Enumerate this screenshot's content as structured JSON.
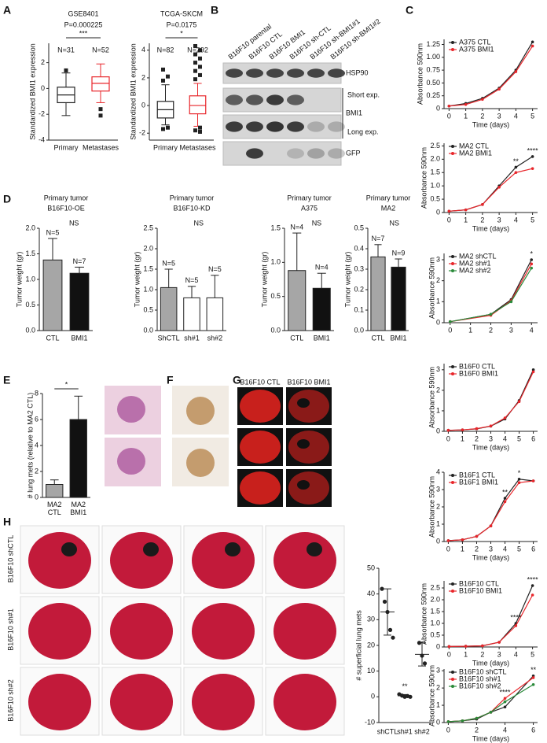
{
  "panel_labels": [
    "A",
    "B",
    "C",
    "D",
    "E",
    "F",
    "G",
    "H"
  ],
  "blot": {
    "lanes": [
      "B16F10 parental",
      "B16F10 CTL",
      "B16F10 BMI1",
      "B16F10 sh-CTL",
      "B16F10 sh-BMI1#1",
      "B16F10 sh-BMI1#2"
    ],
    "proteins": [
      "HSP90",
      "BMI1",
      "GFP"
    ],
    "exposures": [
      "Short exp.",
      "Long exp."
    ]
  },
  "images": {
    "g_columns": [
      "B16F10 CTL",
      "B16F10 BMI1"
    ],
    "h_rows": [
      "B16F10 shCTL",
      "B16F10 sh#1",
      "B16F10 sh#2"
    ]
  },
  "chart_data": [
    {
      "type": "box",
      "title": "GSE8401",
      "p_value": "P=0.000225",
      "significance": "***",
      "categories": [
        "Primary",
        "Metastases"
      ],
      "n_labels": [
        "N=31",
        "N=52"
      ],
      "ylabel": "Standardized BMI1 expression",
      "ylim": [
        -4,
        3.5
      ],
      "yticks": [
        -4,
        -2,
        0,
        2
      ],
      "boxes": [
        {
          "color": "#222222",
          "min": -2.1,
          "q1": -1.1,
          "median": -0.5,
          "q3": 0.1,
          "max": 1.2,
          "outliers": [
            1.4
          ]
        },
        {
          "color": "#e8262b",
          "min": -1.1,
          "q1": -0.2,
          "median": 0.4,
          "q3": 0.9,
          "max": 1.9,
          "outliers": [
            -1.6,
            -2.1
          ]
        }
      ]
    },
    {
      "type": "box",
      "title": "TCGA-SKCM",
      "p_value": "P=0.0175",
      "significance": "*",
      "categories": [
        "Primary",
        "Metastases"
      ],
      "n_labels": [
        "N=82",
        "N=292"
      ],
      "ylabel": "Standardized BMI1 expression",
      "ylim": [
        -2.5,
        4.5
      ],
      "yticks": [
        -2,
        0,
        2,
        4
      ],
      "boxes": [
        {
          "color": "#222222",
          "min": -1.4,
          "q1": -0.9,
          "median": -0.3,
          "q3": 0.3,
          "max": 1.5,
          "outliers": [
            1.8,
            2.1,
            2.6,
            -1.6,
            -1.7
          ]
        },
        {
          "color": "#e8262b",
          "min": -1.5,
          "q1": -0.6,
          "median": 0,
          "q3": 0.7,
          "max": 1.6,
          "outliers": [
            1.9,
            2.2,
            2.5,
            2.8,
            3.1,
            3.4,
            3.7,
            4.0,
            4.3,
            -1.6,
            -1.8,
            -1.9
          ]
        }
      ]
    },
    {
      "type": "line",
      "ylabel": "Absorbance 590nm",
      "xlabel": "Time (days)",
      "x": [
        0,
        1,
        2,
        3,
        4,
        5
      ],
      "xlim": [
        -0.3,
        5.3
      ],
      "xticks": [
        0,
        1,
        2,
        3,
        4,
        5
      ],
      "ylim": [
        0,
        1.35
      ],
      "yticks": [
        0,
        0.25,
        {
          "value": 0.5,
          "label": "0.50"
        },
        0.75,
        {
          "value": 1,
          "label": "1.00"
        },
        1.25
      ],
      "series": [
        {
          "name": "A375 CTL",
          "color": "#222222",
          "values": [
            0.05,
            0.1,
            0.2,
            0.4,
            0.75,
            1.3
          ]
        },
        {
          "name": "A375 BMI1",
          "color": "#e8262b",
          "values": [
            0.05,
            0.08,
            0.18,
            0.38,
            0.72,
            1.22
          ]
        }
      ]
    },
    {
      "type": "line",
      "ylabel": "Absorbance 590nm",
      "xlabel": "Time (days)",
      "x": [
        0,
        1,
        2,
        3,
        4,
        5
      ],
      "xlim": [
        -0.3,
        5.3
      ],
      "xticks": [
        0,
        1,
        2,
        3,
        4,
        5
      ],
      "ylim": [
        0,
        2.6
      ],
      "yticks": [
        0,
        0.5,
        {
          "value": 1,
          "label": "1.0"
        },
        1.5,
        {
          "value": 2,
          "label": "2.0"
        },
        2.5
      ],
      "series": [
        {
          "name": "MA2 CTL",
          "color": "#222222",
          "values": [
            0.05,
            0.1,
            0.3,
            1.0,
            1.7,
            2.1
          ]
        },
        {
          "name": "MA2 BMI1",
          "color": "#e8262b",
          "values": [
            0.05,
            0.1,
            0.3,
            0.95,
            1.5,
            1.65
          ]
        }
      ],
      "annotations": [
        {
          "text": "**",
          "x": 4
        },
        {
          "text": "****",
          "x": 5
        }
      ]
    },
    {
      "type": "line",
      "ylabel": "Absorbance 590nm",
      "x": [
        0,
        2,
        3,
        4
      ],
      "xlim": [
        -0.3,
        4.3
      ],
      "xticks": [
        0,
        1,
        2,
        3,
        4
      ],
      "ylim": [
        0,
        3.3
      ],
      "yticks": [
        0,
        1,
        2,
        3
      ],
      "series": [
        {
          "name": "MA2 shCTL",
          "color": "#222222",
          "values": [
            0.05,
            0.4,
            1.1,
            3.0
          ]
        },
        {
          "name": "MA2 sh#1",
          "color": "#e8262b",
          "values": [
            0.05,
            0.35,
            1.05,
            2.8
          ]
        },
        {
          "name": "MA2 sh#2",
          "color": "#2a8a3a",
          "values": [
            0.05,
            0.4,
            1.0,
            2.6
          ]
        }
      ],
      "annotations": [
        {
          "text": "*",
          "x": 4
        }
      ]
    },
    {
      "type": "line",
      "ylabel": "Absorbance 590nm",
      "xlabel": "Time (days)",
      "x": [
        0,
        1,
        2,
        3,
        4,
        5,
        6
      ],
      "xlim": [
        -0.3,
        6.3
      ],
      "xticks": [
        0,
        1,
        2,
        3,
        4,
        5,
        6
      ],
      "ylim": [
        0,
        3.3
      ],
      "yticks": [
        0,
        1,
        2,
        3
      ],
      "series": [
        {
          "name": "B16F0 CTL",
          "color": "#222222",
          "values": [
            0.05,
            0.07,
            0.12,
            0.25,
            0.6,
            1.5,
            3.0
          ]
        },
        {
          "name": "B16F0 BMI1",
          "color": "#e8262b",
          "values": [
            0.05,
            0.07,
            0.13,
            0.26,
            0.65,
            1.45,
            2.9
          ]
        }
      ]
    },
    {
      "type": "line",
      "ylabel": "Absorbance 590nm",
      "xlabel": "Time (days)",
      "x": [
        0,
        1,
        2,
        3,
        4,
        5,
        6
      ],
      "xlim": [
        -0.3,
        6.3
      ],
      "xticks": [
        0,
        1,
        2,
        3,
        4,
        5,
        6
      ],
      "ylim": [
        0,
        4
      ],
      "yticks": [
        0,
        1,
        2,
        3,
        4
      ],
      "series": [
        {
          "name": "B16F1 CTL",
          "color": "#222222",
          "values": [
            0.05,
            0.1,
            0.3,
            0.9,
            2.5,
            3.6,
            3.5
          ]
        },
        {
          "name": "B16F1 BMI1",
          "color": "#e8262b",
          "values": [
            0.05,
            0.1,
            0.3,
            0.9,
            2.3,
            3.4,
            3.5
          ]
        }
      ],
      "annotations": [
        {
          "text": "**",
          "x": 4
        },
        {
          "text": "*",
          "x": 5
        }
      ]
    },
    {
      "type": "line",
      "ylabel": "Absorbance 590nm",
      "xlabel": "Time (days)",
      "x": [
        0,
        1,
        2,
        3,
        4,
        5
      ],
      "xlim": [
        -0.3,
        5.3
      ],
      "xticks": [
        0,
        1,
        2,
        3,
        4,
        5
      ],
      "ylim": [
        0,
        2.8
      ],
      "yticks": [
        0,
        0.5,
        {
          "value": 1,
          "label": "1.0"
        },
        1.5,
        {
          "value": 2,
          "label": "2.0"
        },
        2.5
      ],
      "series": [
        {
          "name": "B16F10 CTL",
          "color": "#222222",
          "values": [
            0.02,
            0.03,
            0.05,
            0.2,
            1.0,
            2.6
          ]
        },
        {
          "name": "B16F10 BMI1",
          "color": "#e8262b",
          "values": [
            0.02,
            0.03,
            0.05,
            0.2,
            0.9,
            2.2
          ]
        }
      ],
      "annotations": [
        {
          "text": "****",
          "x": 4
        },
        {
          "text": "****",
          "x": 5
        }
      ]
    },
    {
      "type": "line",
      "ylabel": "Absorbance 590nm",
      "xlabel": "Time (days)",
      "x": [
        0,
        1,
        2,
        3,
        4,
        6
      ],
      "xlim": [
        -0.3,
        6.3
      ],
      "xticks": [
        0,
        2,
        4,
        6
      ],
      "ylim": [
        0,
        3.1
      ],
      "yticks": [
        0,
        1,
        2,
        3
      ],
      "series": [
        {
          "name": "B16F10 shCTL",
          "color": "#222222",
          "values": [
            0.05,
            0.1,
            0.2,
            0.6,
            0.9,
            2.7
          ]
        },
        {
          "name": "B16F10 sh#1",
          "color": "#e8262b",
          "values": [
            0.05,
            0.1,
            0.25,
            0.6,
            1.4,
            2.6
          ]
        },
        {
          "name": "B16F10 sh#2",
          "color": "#2a8a3a",
          "values": [
            0.05,
            0.1,
            0.25,
            0.6,
            1.2,
            2.2
          ]
        }
      ],
      "annotations": [
        {
          "text": "****",
          "x": 4
        },
        {
          "text": "**",
          "x": 6
        }
      ]
    },
    {
      "type": "bar",
      "title": "Primary tumor",
      "subtitle": "B16F10-OE",
      "categories": [
        "CTL",
        "BMI1"
      ],
      "values": [
        1.38,
        1.12
      ],
      "errors": [
        0.42,
        0.12
      ],
      "colors": [
        "#a6a6a6",
        "#111111"
      ],
      "n_labels": [
        "N=5",
        "N=7"
      ],
      "annotation": "NS",
      "ylabel": "Tumor weight (gr)",
      "ylim": [
        0,
        2
      ],
      "yticks": [
        {
          "value": 0,
          "label": "0.0"
        },
        0.5,
        {
          "value": 1,
          "label": "1.0"
        },
        1.5,
        {
          "value": 2,
          "label": "2.0"
        }
      ]
    },
    {
      "type": "bar",
      "title": "Primary tumor",
      "subtitle": "B16F10-KD",
      "categories": [
        "ShCTL",
        "sh#1",
        "sh#2"
      ],
      "values": [
        1.05,
        0.8,
        0.8
      ],
      "errors": [
        0.45,
        0.28,
        0.55
      ],
      "colors": [
        "#a6a6a6",
        "#ffffff",
        "#ffffff"
      ],
      "n_labels": [
        "N=5",
        "N=5",
        "N=5"
      ],
      "annotation": "NS",
      "ylabel": "Tumor weight (gr)",
      "ylim": [
        0,
        2.5
      ],
      "yticks": [
        {
          "value": 0,
          "label": "0.0"
        },
        0.5,
        {
          "value": 1,
          "label": "1.0"
        },
        1.5,
        {
          "value": 2,
          "label": "2.0"
        },
        2.5
      ]
    },
    {
      "type": "bar",
      "title": "Primary tumor",
      "subtitle": "A375",
      "categories": [
        "CTL",
        "BMI1"
      ],
      "values": [
        0.88,
        0.62
      ],
      "errors": [
        0.55,
        0.22
      ],
      "colors": [
        "#a6a6a6",
        "#111111"
      ],
      "n_labels": [
        "N=4",
        "N=4"
      ],
      "annotation": "NS",
      "ylabel": "Tumor weight (gr)",
      "ylim": [
        0,
        1.5
      ],
      "yticks": [
        {
          "value": 0,
          "label": "0.0"
        },
        0.5,
        {
          "value": 1,
          "label": "1.0"
        },
        1.5
      ]
    },
    {
      "type": "bar",
      "title": "Primary tumor",
      "subtitle": "MA2",
      "categories": [
        "CTL",
        "BMI1"
      ],
      "values": [
        0.36,
        0.31
      ],
      "errors": [
        0.06,
        0.04
      ],
      "colors": [
        "#a6a6a6",
        "#111111"
      ],
      "n_labels": [
        "N=7",
        "N=9"
      ],
      "annotation": "NS",
      "ylabel": "Tumor weight (gr)",
      "ylim": [
        0,
        0.5
      ],
      "yticks": [
        {
          "value": 0,
          "label": "0.0"
        },
        0.1,
        0.2,
        0.3,
        0.4,
        0.5
      ]
    },
    {
      "type": "bar",
      "categories": [
        "MA2\nCTL",
        "MA2\nBMI1"
      ],
      "values": [
        1,
        6
      ],
      "errors": [
        0.35,
        1.8
      ],
      "colors": [
        "#a6a6a6",
        "#111111"
      ],
      "significance": "*",
      "ylabel": "# lung mets (relative to MA2 CTL)",
      "ylim": [
        0,
        8
      ],
      "yticks": [
        0,
        2,
        4,
        6,
        8
      ]
    },
    {
      "type": "dot",
      "categories": [
        "shCTL",
        "sh#1",
        "sh#2"
      ],
      "points": [
        [
          42,
          37,
          33,
          26,
          23
        ],
        [
          1,
          0.5,
          0,
          0.3,
          0
        ],
        [
          21,
          16,
          13
        ]
      ],
      "means": [
        33,
        0.4,
        16.5
      ],
      "sd": [
        9,
        0.5,
        4.5
      ],
      "annotations": [
        {
          "text": "**",
          "category": 1
        }
      ],
      "ylabel": "# superficial lung mets",
      "ylim": [
        -10,
        50
      ],
      "yticks": [
        -10,
        0,
        10,
        20,
        30,
        40,
        50
      ]
    }
  ]
}
